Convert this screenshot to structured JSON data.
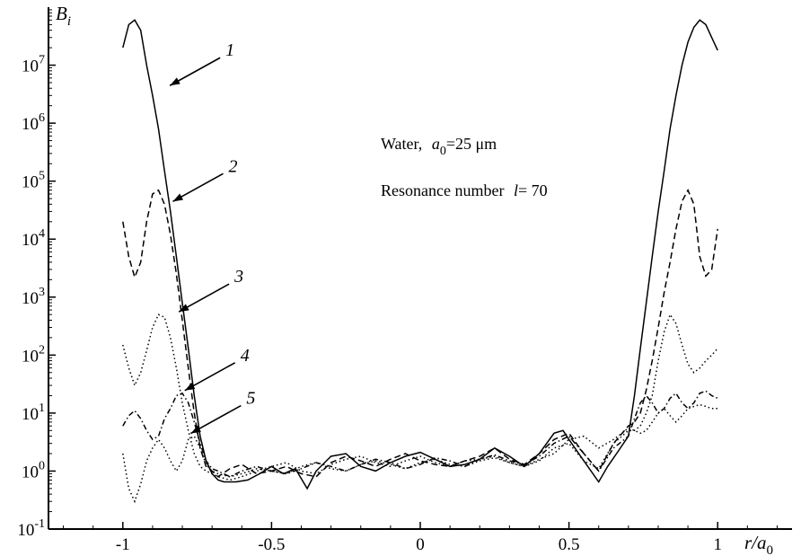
{
  "chart_data": {
    "type": "line",
    "y_scale": "log",
    "ylabel_main": "B",
    "ylabel_sub": "i",
    "xlabel_main": "r/a",
    "xlabel_sub": "0",
    "xlim": [
      -1.25,
      1.25
    ],
    "ylim": [
      0.1,
      100000000
    ],
    "x_ticks": [
      {
        "v": -1,
        "label": "-1"
      },
      {
        "v": -0.5,
        "label": "-0.5"
      },
      {
        "v": 0,
        "label": "0"
      },
      {
        "v": 0.5,
        "label": "0.5"
      },
      {
        "v": 1,
        "label": "1"
      }
    ],
    "y_ticks": [
      {
        "v": 0.1,
        "base": "10",
        "exp": "-1"
      },
      {
        "v": 1,
        "base": "10",
        "exp": "0"
      },
      {
        "v": 10,
        "base": "10",
        "exp": "1"
      },
      {
        "v": 100,
        "base": "10",
        "exp": "2"
      },
      {
        "v": 1000,
        "base": "10",
        "exp": "3"
      },
      {
        "v": 10000,
        "base": "10",
        "exp": "4"
      },
      {
        "v": 100000,
        "base": "10",
        "exp": "5"
      },
      {
        "v": 1000000,
        "base": "10",
        "exp": "6"
      },
      {
        "v": 10000000,
        "base": "10",
        "exp": "7"
      }
    ],
    "annotations": {
      "line1_prefix": "Water,",
      "line1_var": "a",
      "line1_sub": "0",
      "line1_suffix": "=25 μm",
      "line2_prefix": "Resonance number",
      "line2_var": "l",
      "line2_suffix": "= 70"
    },
    "series": [
      {
        "label": "1",
        "style": "solid",
        "x": [
          -1.0,
          -0.98,
          -0.96,
          -0.94,
          -0.92,
          -0.9,
          -0.88,
          -0.86,
          -0.84,
          -0.82,
          -0.8,
          -0.78,
          -0.76,
          -0.74,
          -0.72,
          -0.7,
          -0.68,
          -0.66,
          -0.62,
          -0.58,
          -0.54,
          -0.5,
          -0.46,
          -0.42,
          -0.38,
          -0.35,
          -0.3,
          -0.25,
          -0.2,
          -0.15,
          -0.1,
          -0.05,
          0.0,
          0.05,
          0.1,
          0.15,
          0.2,
          0.25,
          0.3,
          0.35,
          0.4,
          0.45,
          0.48,
          0.5,
          0.55,
          0.6,
          0.63,
          0.66,
          0.7,
          0.72,
          0.74,
          0.76,
          0.78,
          0.8,
          0.82,
          0.84,
          0.86,
          0.88,
          0.9,
          0.92,
          0.94,
          0.96,
          0.98,
          1.0
        ],
        "y": [
          20000000,
          50000000,
          60000000,
          40000000,
          10000000,
          3000000,
          800000,
          150000,
          30000,
          5000,
          800,
          130,
          20,
          4,
          1.5,
          0.9,
          0.7,
          0.65,
          0.65,
          0.7,
          0.9,
          1.2,
          0.9,
          1.1,
          0.5,
          1.0,
          1.8,
          2.0,
          1.2,
          1.0,
          1.4,
          1.8,
          2.1,
          1.6,
          1.2,
          1.3,
          1.6,
          2.5,
          1.8,
          1.2,
          2.0,
          4.5,
          5.0,
          3.5,
          1.5,
          0.65,
          1.2,
          2.0,
          4,
          20,
          130,
          800,
          5000,
          30000,
          150000,
          800000,
          3000000,
          10000000,
          25000000,
          45000000,
          60000000,
          50000000,
          30000000,
          18000000
        ]
      },
      {
        "label": "2",
        "style": "dashed",
        "x": [
          -1.0,
          -0.98,
          -0.96,
          -0.94,
          -0.92,
          -0.9,
          -0.88,
          -0.86,
          -0.84,
          -0.82,
          -0.8,
          -0.78,
          -0.76,
          -0.74,
          -0.72,
          -0.7,
          -0.68,
          -0.64,
          -0.6,
          -0.55,
          -0.5,
          -0.45,
          -0.4,
          -0.35,
          -0.3,
          -0.25,
          -0.2,
          -0.15,
          -0.1,
          -0.05,
          0.0,
          0.05,
          0.1,
          0.15,
          0.2,
          0.25,
          0.3,
          0.35,
          0.4,
          0.45,
          0.5,
          0.55,
          0.6,
          0.65,
          0.7,
          0.72,
          0.74,
          0.76,
          0.78,
          0.8,
          0.82,
          0.84,
          0.86,
          0.88,
          0.9,
          0.92,
          0.94,
          0.96,
          0.98,
          1.0
        ],
        "y": [
          20000,
          5000,
          2200,
          4000,
          20000,
          60000,
          70000,
          40000,
          12000,
          2500,
          400,
          60,
          10,
          2.5,
          1.2,
          1.0,
          0.8,
          1.1,
          1.3,
          0.9,
          1.0,
          1.2,
          0.9,
          0.8,
          1.4,
          1.8,
          1.5,
          1.2,
          1.6,
          2.0,
          1.5,
          1.3,
          1.2,
          1.5,
          1.8,
          2.5,
          1.6,
          1.3,
          2.0,
          3.5,
          4.5,
          2.0,
          1.0,
          3,
          6,
          7,
          10,
          25,
          80,
          300,
          1200,
          4000,
          15000,
          45000,
          70000,
          40000,
          5000,
          2300,
          3000,
          15000
        ]
      },
      {
        "label": "3",
        "style": "dotted",
        "x": [
          -1.0,
          -0.98,
          -0.96,
          -0.94,
          -0.92,
          -0.9,
          -0.88,
          -0.86,
          -0.84,
          -0.82,
          -0.8,
          -0.78,
          -0.76,
          -0.74,
          -0.72,
          -0.7,
          -0.68,
          -0.64,
          -0.6,
          -0.55,
          -0.5,
          -0.45,
          -0.4,
          -0.35,
          -0.3,
          -0.25,
          -0.2,
          -0.15,
          -0.1,
          -0.05,
          0.0,
          0.05,
          0.1,
          0.15,
          0.2,
          0.25,
          0.3,
          0.35,
          0.4,
          0.45,
          0.5,
          0.55,
          0.6,
          0.65,
          0.7,
          0.72,
          0.74,
          0.76,
          0.78,
          0.8,
          0.82,
          0.84,
          0.86,
          0.88,
          0.9,
          0.92,
          0.94,
          0.96,
          0.98,
          1.0
        ],
        "y": [
          150,
          60,
          30,
          50,
          120,
          300,
          500,
          450,
          200,
          60,
          15,
          5,
          2,
          1.2,
          1.0,
          0.9,
          0.8,
          0.7,
          0.8,
          1.0,
          1.2,
          1.4,
          1.0,
          0.9,
          1.3,
          1.6,
          1.8,
          1.4,
          1.2,
          1.5,
          1.8,
          1.4,
          1.2,
          1.5,
          1.6,
          1.8,
          1.4,
          1.2,
          1.5,
          2.5,
          3.0,
          1.5,
          1.1,
          3,
          5,
          5,
          6,
          10,
          20,
          80,
          250,
          500,
          350,
          150,
          70,
          50,
          60,
          80,
          100,
          130
        ]
      },
      {
        "label": "4",
        "style": "dashdot",
        "x": [
          -1.0,
          -0.98,
          -0.96,
          -0.94,
          -0.92,
          -0.9,
          -0.88,
          -0.86,
          -0.84,
          -0.82,
          -0.8,
          -0.78,
          -0.76,
          -0.74,
          -0.72,
          -0.7,
          -0.68,
          -0.64,
          -0.6,
          -0.55,
          -0.5,
          -0.45,
          -0.4,
          -0.35,
          -0.3,
          -0.25,
          -0.2,
          -0.15,
          -0.1,
          -0.05,
          0.0,
          0.05,
          0.1,
          0.15,
          0.2,
          0.25,
          0.3,
          0.35,
          0.4,
          0.45,
          0.5,
          0.55,
          0.6,
          0.65,
          0.7,
          0.72,
          0.74,
          0.76,
          0.78,
          0.8,
          0.82,
          0.84,
          0.86,
          0.88,
          0.9,
          0.92,
          0.94,
          0.96,
          0.98,
          1.0
        ],
        "y": [
          6,
          9,
          11,
          8,
          5,
          3.5,
          4,
          8,
          12,
          20,
          22,
          15,
          7,
          3,
          1.5,
          1.1,
          1.0,
          0.8,
          1.0,
          1.2,
          1.0,
          0.9,
          1.1,
          1.4,
          1.2,
          1.0,
          1.3,
          1.6,
          1.4,
          1.1,
          1.3,
          1.7,
          1.5,
          1.2,
          1.6,
          1.9,
          1.5,
          1.3,
          1.8,
          3.0,
          4.0,
          2.0,
          1.0,
          2.5,
          4,
          8,
          15,
          20,
          15,
          10,
          12,
          18,
          22,
          15,
          12,
          15,
          22,
          24,
          20,
          18
        ]
      },
      {
        "label": "5",
        "style": "dotted",
        "x": [
          -1.0,
          -0.98,
          -0.96,
          -0.94,
          -0.92,
          -0.9,
          -0.88,
          -0.86,
          -0.84,
          -0.82,
          -0.8,
          -0.78,
          -0.76,
          -0.74,
          -0.72,
          -0.7,
          -0.68,
          -0.64,
          -0.6,
          -0.55,
          -0.5,
          -0.45,
          -0.4,
          -0.35,
          -0.3,
          -0.25,
          -0.2,
          -0.15,
          -0.1,
          -0.05,
          0.0,
          0.05,
          0.1,
          0.15,
          0.2,
          0.25,
          0.3,
          0.35,
          0.4,
          0.45,
          0.5,
          0.55,
          0.6,
          0.65,
          0.7,
          0.72,
          0.74,
          0.76,
          0.78,
          0.8,
          0.82,
          0.84,
          0.86,
          0.88,
          0.9,
          0.92,
          0.94,
          0.96,
          0.98,
          1.0
        ],
        "y": [
          2,
          0.5,
          0.3,
          0.6,
          1.5,
          2.5,
          3.5,
          2.5,
          1.5,
          1.0,
          1.5,
          3.5,
          4,
          2.5,
          1.3,
          1.0,
          0.9,
          0.8,
          0.9,
          1.1,
          1.0,
          0.9,
          1.2,
          1.4,
          1.1,
          1.0,
          1.3,
          1.5,
          1.3,
          1.1,
          1.4,
          1.6,
          1.3,
          1.2,
          1.5,
          1.7,
          1.4,
          1.2,
          1.6,
          2.0,
          3.5,
          4.0,
          2.5,
          3.5,
          5.5,
          5,
          4.5,
          5,
          7,
          10,
          12,
          9,
          7,
          9,
          12,
          13,
          14,
          13,
          12,
          12
        ]
      }
    ],
    "callouts": [
      {
        "label": "1",
        "x": -0.86,
        "y": 4000000
      },
      {
        "label": "2",
        "x": -0.85,
        "y": 40000
      },
      {
        "label": "3",
        "x": -0.83,
        "y": 500
      },
      {
        "label": "4",
        "x": -0.81,
        "y": 22
      },
      {
        "label": "5",
        "x": -0.79,
        "y": 4
      }
    ]
  }
}
